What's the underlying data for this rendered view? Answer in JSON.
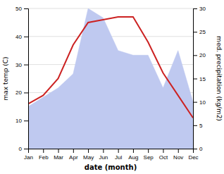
{
  "chart_data": {
    "type": "line",
    "categories": [
      "Jan",
      "Feb",
      "Mar",
      "Apr",
      "May",
      "Jun",
      "Jul",
      "Aug",
      "Sep",
      "Oct",
      "Nov",
      "Dec"
    ],
    "series": [
      {
        "type": "area",
        "axis": "y2",
        "color": "#bfc9f0",
        "values": [
          9,
          11,
          13,
          16,
          30,
          28,
          21,
          20,
          20,
          13,
          21,
          10
        ]
      },
      {
        "type": "line",
        "color": "#cc2222",
        "values": [
          16,
          19,
          25,
          37,
          45,
          46,
          47,
          47,
          38,
          27,
          19,
          11
        ]
      }
    ],
    "x_label": "date (month)",
    "y_label": "max temp (C)",
    "y2_label": "med. precipitation (kg/m2)",
    "ylim": [
      0,
      50
    ],
    "yticks": [
      0,
      10,
      20,
      30,
      40,
      50
    ],
    "y2lim": [
      0,
      30
    ],
    "y2ticks": [
      0,
      5,
      10,
      15,
      20,
      25,
      30
    ],
    "grid": true
  }
}
